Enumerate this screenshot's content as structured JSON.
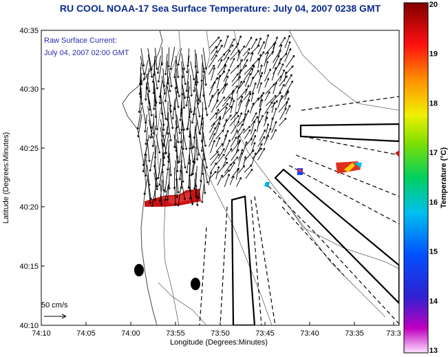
{
  "title": "RU COOL  NOAA-17  Sea Surface Temperature:  July 04, 2007 0238 GMT",
  "subtitle_line1": "Raw Surface Current:",
  "subtitle_line2": "July 04, 2007 02:00 GMT",
  "scale_label": "50 cm/s",
  "xlabel": "Longitude (Degrees:Minutes)",
  "ylabel": "Latitude (Degrees:Minutes)",
  "colorbar_label": "Temperature (°C)",
  "x_ticks": [
    "74:10",
    "74:05",
    "74:00",
    "73:55",
    "73:50",
    "73:45",
    "73:40",
    "73:35",
    "73:3"
  ],
  "y_ticks": [
    "40:35",
    "40:30",
    "40:25",
    "40:20",
    "40:15",
    "40:10"
  ],
  "colorbar_ticks": [
    "20",
    "19",
    "18",
    "17",
    "16",
    "15",
    "14",
    "13"
  ],
  "colors": {
    "title": "#0a2a8a",
    "subtitle": "#2a2ab0",
    "sst_warm": "#cc1010"
  }
}
